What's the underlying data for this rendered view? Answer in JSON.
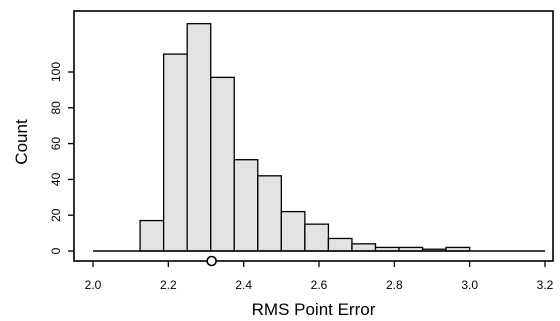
{
  "chart_data": {
    "type": "bar",
    "subtype": "histogram",
    "xlabel": "RMS Point Error",
    "ylabel": "Count",
    "xlim": [
      2.0,
      3.2
    ],
    "ylim": [
      0,
      125
    ],
    "x_ticks": [
      "2.0",
      "2.2",
      "2.4",
      "2.6",
      "2.8",
      "3.0",
      "3.2"
    ],
    "y_ticks": [
      "0",
      "20",
      "40",
      "60",
      "80",
      "100"
    ],
    "bin_width": 0.0625,
    "bins": [
      {
        "x0": 2.125,
        "x1": 2.1875,
        "count": 17
      },
      {
        "x0": 2.1875,
        "x1": 2.25,
        "count": 110
      },
      {
        "x0": 2.25,
        "x1": 2.3125,
        "count": 127
      },
      {
        "x0": 2.3125,
        "x1": 2.375,
        "count": 97
      },
      {
        "x0": 2.375,
        "x1": 2.4375,
        "count": 51
      },
      {
        "x0": 2.4375,
        "x1": 2.5,
        "count": 42
      },
      {
        "x0": 2.5,
        "x1": 2.5625,
        "count": 22
      },
      {
        "x0": 2.5625,
        "x1": 2.625,
        "count": 15
      },
      {
        "x0": 2.625,
        "x1": 2.6875,
        "count": 7
      },
      {
        "x0": 2.6875,
        "x1": 2.75,
        "count": 4
      },
      {
        "x0": 2.75,
        "x1": 2.8125,
        "count": 2
      },
      {
        "x0": 2.8125,
        "x1": 2.875,
        "count": 2
      },
      {
        "x0": 2.875,
        "x1": 2.9375,
        "count": 1
      },
      {
        "x0": 2.9375,
        "x1": 3.0,
        "count": 2
      }
    ],
    "baseline_range": [
      2.0,
      3.2
    ],
    "marker": {
      "x": 2.315,
      "shape": "open-circle"
    },
    "grid": false,
    "legend": "none",
    "bar_color": "#e3e3e3",
    "edge_color": "#000000"
  }
}
